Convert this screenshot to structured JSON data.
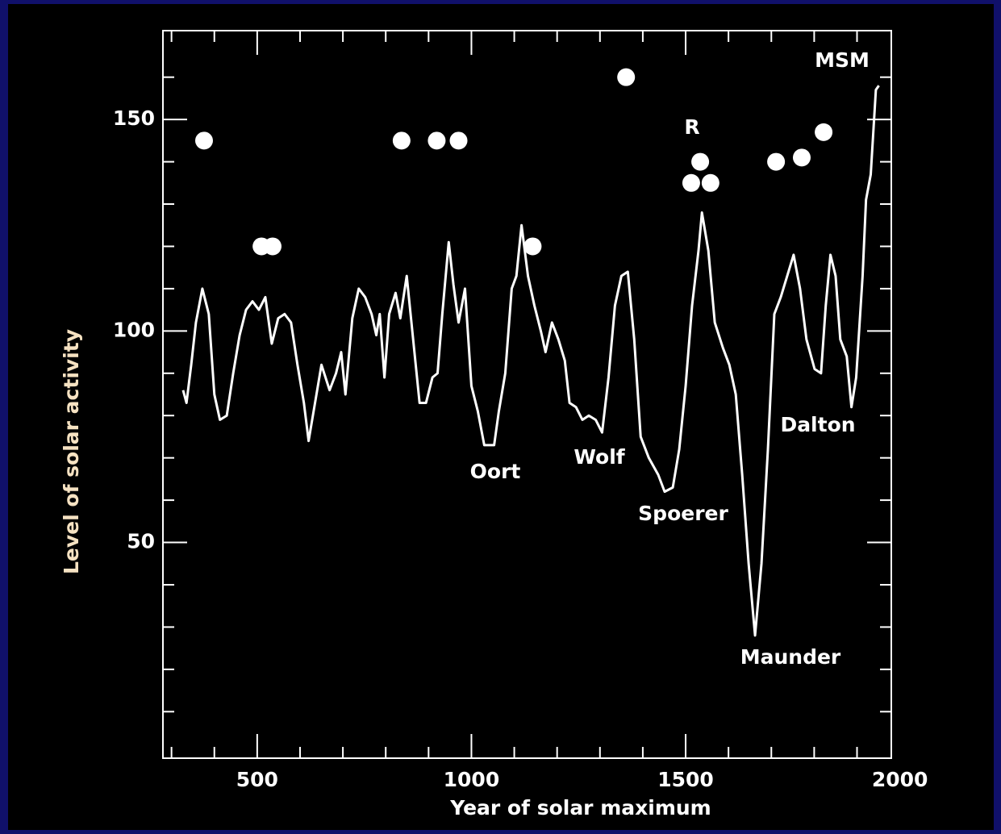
{
  "chart_data": {
    "type": "line",
    "xlabel": "Year of solar maximum",
    "ylabel": "Level of solar activity",
    "xlim": [
      280,
      1980
    ],
    "ylim": [
      -1,
      171
    ],
    "xticks": [
      500,
      1000,
      1500,
      2000
    ],
    "yticks": [
      50,
      100,
      150
    ],
    "xminor": [
      300,
      400,
      600,
      700,
      800,
      900,
      1100,
      1200,
      1300,
      1400,
      1600,
      1700,
      1800,
      1900
    ],
    "yminor": [
      10,
      20,
      30,
      40,
      60,
      70,
      80,
      90,
      110,
      120,
      130,
      140,
      160
    ],
    "series": [
      {
        "color": "#ffffff",
        "x": [
          327,
          335,
          346,
          357,
          372,
          387,
          400,
          413,
          429,
          444,
          459,
          474,
          489,
          504,
          519,
          534,
          549,
          564,
          579,
          594,
          609,
          620,
          635,
          650,
          669,
          684,
          696,
          706,
          722,
          737,
          752,
          767,
          778,
          786,
          797,
          808,
          823,
          834,
          849,
          864,
          879,
          894,
          909,
          921,
          932,
          947,
          958,
          970,
          985,
          1000,
          1015,
          1030,
          1053,
          1064,
          1079,
          1094,
          1105,
          1117,
          1132,
          1147,
          1162,
          1173,
          1188,
          1203,
          1218,
          1229,
          1244,
          1259,
          1274,
          1290,
          1305,
          1320,
          1335,
          1350,
          1365,
          1380,
          1395,
          1414,
          1436,
          1451,
          1470,
          1485,
          1500,
          1515,
          1530,
          1538,
          1553,
          1568,
          1587,
          1602,
          1617,
          1632,
          1647,
          1662,
          1677,
          1692,
          1707,
          1722,
          1737,
          1752,
          1767,
          1782,
          1801,
          1816,
          1827,
          1838,
          1850,
          1861,
          1876,
          1887,
          1898,
          1913,
          1921,
          1932,
          1944,
          1951
        ],
        "values": [
          86,
          83,
          92,
          102,
          110,
          104,
          85,
          79,
          80,
          90,
          99,
          105,
          107,
          105,
          108,
          97,
          103,
          104,
          102,
          92,
          83,
          74,
          83,
          92,
          86,
          90,
          95,
          85,
          103,
          110,
          108,
          104,
          99,
          104,
          89,
          104,
          109,
          103,
          113,
          98,
          83,
          83,
          89,
          90,
          104,
          121,
          111,
          102,
          110,
          87,
          81,
          73,
          73,
          81,
          90,
          110,
          113,
          125,
          113,
          106,
          100,
          95,
          102,
          98,
          93,
          83,
          82,
          79,
          80,
          79,
          76,
          89,
          106,
          113,
          114,
          98,
          75,
          70,
          66,
          62,
          63,
          72,
          87,
          106,
          119,
          128,
          119,
          102,
          96,
          92,
          85,
          66,
          45,
          28,
          45,
          72,
          104,
          108,
          113,
          118,
          110,
          98,
          91,
          90,
          106,
          118,
          113,
          98,
          94,
          82,
          89,
          113,
          131,
          137,
          157,
          158
        ]
      },
      {
        "type": "scatter",
        "color": "#ffffff",
        "x": [
          376,
          510,
          536,
          837,
          919,
          970,
          1143,
          1361,
          1513,
          1534,
          1558,
          1711,
          1771,
          1822
        ],
        "values": [
          145,
          120,
          120,
          145,
          145,
          145,
          120,
          160,
          135,
          140,
          135,
          140,
          141,
          147
        ]
      }
    ],
    "annotations": [
      "MSM",
      "R",
      "Oort",
      "Wolf",
      "Spoerer",
      "Maunder",
      "Dalton"
    ]
  }
}
